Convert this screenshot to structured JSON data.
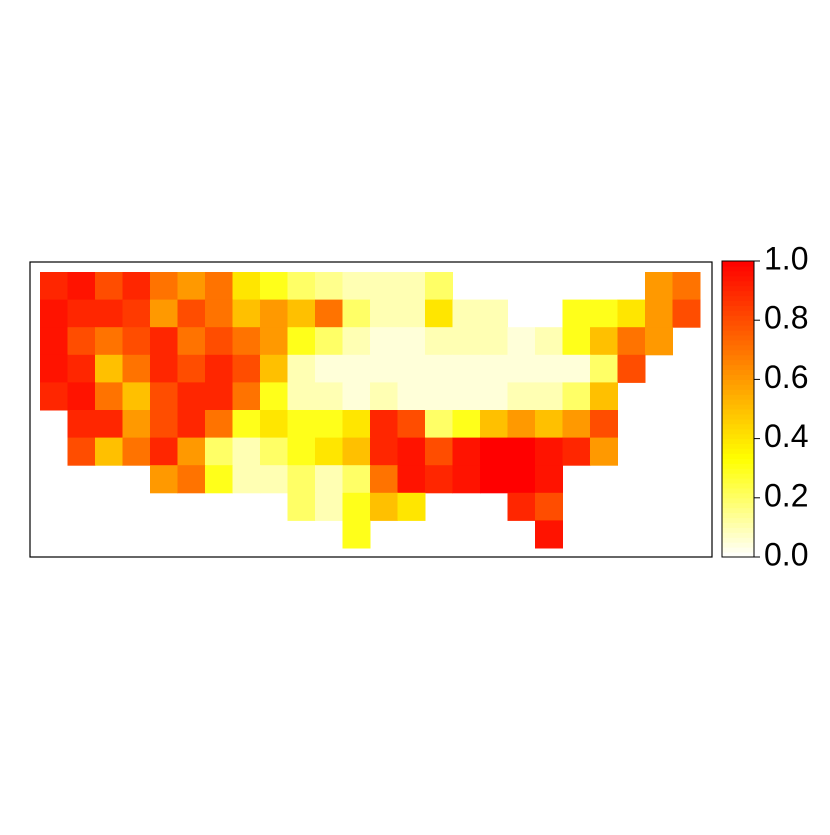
{
  "chart_data": {
    "type": "heatmap",
    "colors": [
      "#ffffff",
      "#ffff00",
      "#ff8000",
      "#ff0000"
    ],
    "values": [
      [
        0.9,
        0.95,
        0.8,
        0.9,
        0.7,
        0.6,
        0.7,
        0.4,
        0.3,
        0.2,
        0.15,
        0.1,
        0.1,
        0.1,
        0.2,
        null,
        null,
        null,
        null,
        null,
        null,
        null,
        0.6,
        0.7
      ],
      [
        0.95,
        0.9,
        0.9,
        0.85,
        0.6,
        0.8,
        0.7,
        0.5,
        0.6,
        0.5,
        0.7,
        0.2,
        0.1,
        0.1,
        0.4,
        0.1,
        0.1,
        null,
        null,
        0.3,
        0.3,
        0.4,
        0.6,
        0.8
      ],
      [
        0.95,
        0.8,
        0.7,
        0.8,
        0.9,
        0.7,
        0.8,
        0.7,
        0.6,
        0.3,
        0.2,
        0.1,
        0.05,
        0.05,
        0.1,
        0.1,
        0.1,
        0.05,
        0.1,
        0.3,
        0.5,
        0.7,
        0.6,
        null
      ],
      [
        0.95,
        0.9,
        0.5,
        0.7,
        0.9,
        0.8,
        0.9,
        0.8,
        0.5,
        0.1,
        0.05,
        0.05,
        0.05,
        0.05,
        0.05,
        0.05,
        0.05,
        0.05,
        0.05,
        0.05,
        0.2,
        0.8,
        null,
        null
      ],
      [
        0.9,
        0.95,
        0.7,
        0.5,
        0.8,
        0.9,
        0.9,
        0.7,
        0.3,
        0.1,
        0.1,
        0.05,
        0.1,
        0.05,
        0.05,
        0.05,
        0.05,
        0.1,
        0.1,
        0.2,
        0.5,
        null,
        null,
        null
      ],
      [
        null,
        0.9,
        0.9,
        0.6,
        0.8,
        0.9,
        0.7,
        0.3,
        0.4,
        0.3,
        0.3,
        0.4,
        0.9,
        0.8,
        0.2,
        0.3,
        0.5,
        0.6,
        0.5,
        0.6,
        0.8,
        null,
        null,
        null
      ],
      [
        null,
        0.8,
        0.5,
        0.7,
        0.9,
        0.6,
        0.2,
        0.1,
        0.2,
        0.3,
        0.4,
        0.5,
        0.9,
        0.95,
        0.8,
        0.95,
        1,
        1,
        0.95,
        0.9,
        0.6,
        null,
        null,
        null
      ],
      [
        null,
        null,
        null,
        null,
        0.6,
        0.7,
        0.3,
        0.1,
        0.1,
        0.2,
        0.1,
        0.2,
        0.7,
        0.95,
        0.9,
        0.95,
        1,
        1,
        0.95,
        null,
        null,
        null,
        null,
        null
      ],
      [
        null,
        null,
        null,
        null,
        null,
        null,
        null,
        null,
        null,
        0.2,
        0.1,
        0.3,
        0.5,
        0.4,
        null,
        null,
        null,
        0.9,
        0.8,
        null,
        null,
        null,
        null,
        null
      ],
      [
        null,
        null,
        null,
        null,
        null,
        null,
        null,
        null,
        null,
        null,
        null,
        0.3,
        null,
        null,
        null,
        null,
        null,
        null,
        0.95,
        null,
        null,
        null,
        null,
        null
      ]
    ],
    "zlim": [
      0,
      1
    ],
    "zticks": [
      {
        "value": 0,
        "label": "0.0"
      },
      {
        "value": 0.2,
        "label": "0.2"
      },
      {
        "value": 0.4,
        "label": "0.4"
      },
      {
        "value": 0.6,
        "label": "0.6"
      },
      {
        "value": 0.8,
        "label": "0.8"
      },
      {
        "value": 1,
        "label": "1.0"
      }
    ]
  }
}
